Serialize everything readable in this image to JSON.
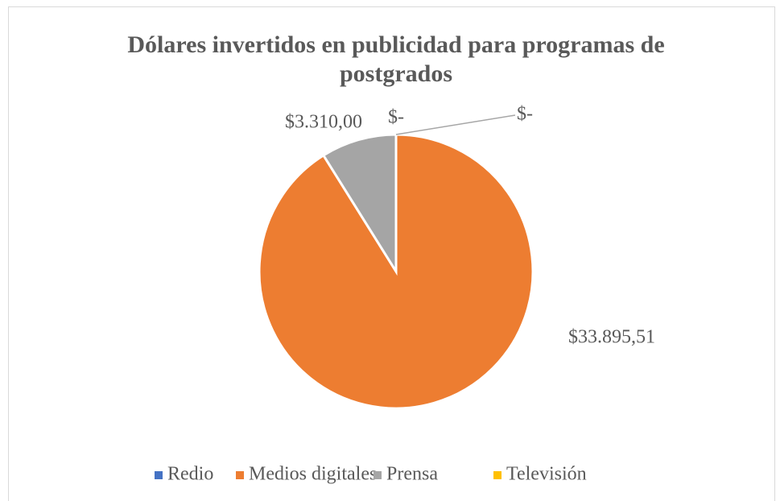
{
  "chart_data": {
    "type": "pie",
    "title": "Dólares invertidos en publicidad para programas de postgrados",
    "categories": [
      "Redio",
      "Medios digitales",
      "Prensa",
      "Televisión"
    ],
    "values": [
      0,
      33895.51,
      3310,
      0
    ],
    "value_labels": [
      "$-",
      "$33.895,51",
      "$3.310,00",
      "$-"
    ],
    "colors": [
      "#4472c4",
      "#ed7d31",
      "#a5a5a5",
      "#ffc000"
    ],
    "legend": "bottom"
  }
}
